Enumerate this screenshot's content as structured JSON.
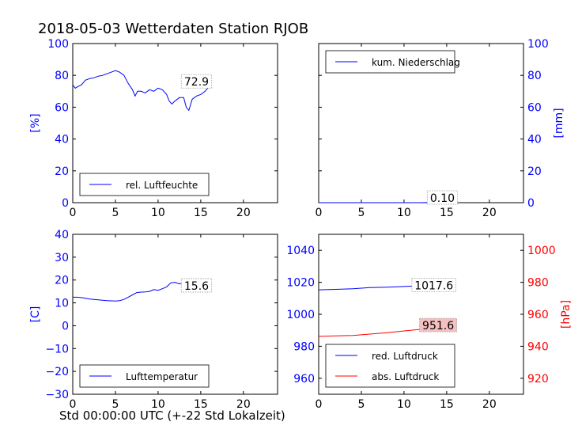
{
  "figure": {
    "title": "2018-05-03 Wetterdaten Station RJOB",
    "xlabel": "Std 00:00:00 UTC (+-22 Std Lokalzeit)"
  },
  "colors": {
    "blue": "#0000ff",
    "red": "#ff0000",
    "black": "#000000"
  },
  "chart_data": [
    {
      "type": "line",
      "panel": "top-left",
      "xlim": [
        0,
        24
      ],
      "xticks": [
        0,
        5,
        10,
        15,
        20
      ],
      "ylim": [
        0,
        100
      ],
      "yticks": [
        0,
        20,
        40,
        60,
        80,
        100
      ],
      "ylabel": "[%]",
      "yaxis_side": "left",
      "axis_color": "#0000ff",
      "legend_position": "lower-left",
      "annotation": {
        "text": "72.9",
        "x": 14.5,
        "y": 76
      },
      "series": [
        {
          "name": "rel. Luftfeuchte",
          "color": "#0000ff",
          "x": [
            0,
            0.3,
            0.6,
            1,
            1.5,
            2,
            2.5,
            3,
            3.5,
            4,
            4.5,
            5,
            5.5,
            6,
            6.5,
            7,
            7.3,
            7.6,
            8,
            8.5,
            9,
            9.5,
            10,
            10.5,
            11,
            11.3,
            11.6,
            12,
            12.5,
            13,
            13.3,
            13.6,
            14,
            14.5,
            15,
            15.5,
            16
          ],
          "values": [
            74,
            72,
            73,
            74,
            77,
            78,
            78.5,
            79.5,
            80,
            81,
            82,
            83,
            82,
            80,
            75,
            71,
            67,
            70,
            70,
            69,
            71,
            70,
            72,
            71,
            68,
            64,
            62,
            64,
            66,
            66,
            60,
            58,
            65,
            67,
            68,
            70,
            73
          ]
        }
      ]
    },
    {
      "type": "line",
      "panel": "top-right",
      "xlim": [
        0,
        24
      ],
      "xticks": [
        0,
        5,
        10,
        15,
        20
      ],
      "ylim": [
        0,
        100
      ],
      "yticks": [
        0,
        20,
        40,
        60,
        80,
        100
      ],
      "ylabel": "[mm]",
      "yaxis_side": "right",
      "axis_color": "#0000ff",
      "legend_position": "upper-left",
      "annotation": {
        "text": "0.10",
        "x": 14.5,
        "y": 3
      },
      "series": [
        {
          "name": "kum. Niederschlag",
          "color": "#0000ff",
          "x": [
            0,
            4,
            8,
            12,
            13,
            16
          ],
          "values": [
            0,
            0,
            0,
            0,
            0.1,
            0.1
          ]
        }
      ]
    },
    {
      "type": "line",
      "panel": "bottom-left",
      "xlim": [
        0,
        24
      ],
      "xticks": [
        0,
        5,
        10,
        15,
        20
      ],
      "ylim": [
        -30,
        40
      ],
      "yticks": [
        -30,
        -20,
        -10,
        0,
        10,
        20,
        30,
        40
      ],
      "ylabel": "[C]",
      "yaxis_side": "left",
      "axis_color": "#0000ff",
      "legend_position": "lower-left",
      "annotation": {
        "text": "15.6",
        "x": 14.5,
        "y": 17.5
      },
      "series": [
        {
          "name": "Lufttemperatur",
          "color": "#0000ff",
          "x": [
            0,
            0.5,
            1,
            1.5,
            2,
            3,
            4,
            5,
            5.5,
            6,
            6.5,
            7,
            7.5,
            8,
            8.5,
            9,
            9.5,
            10,
            10.5,
            11,
            11.5,
            12,
            12.5,
            13,
            13.5,
            14,
            14.5,
            15,
            15.5,
            16
          ],
          "values": [
            12.5,
            12.5,
            12.3,
            12,
            11.7,
            11.3,
            11,
            10.8,
            11,
            11.5,
            12.5,
            13.5,
            14.5,
            14.7,
            14.8,
            15,
            15.8,
            15.5,
            16.2,
            17,
            18.8,
            19,
            18.3,
            18.8,
            17.5,
            18.5,
            17.2,
            17.3,
            16.5,
            15.6
          ]
        }
      ]
    },
    {
      "type": "line",
      "panel": "bottom-right",
      "xlim": [
        0,
        24
      ],
      "xticks": [
        0,
        5,
        10,
        15,
        20
      ],
      "ylim": [
        950,
        1050
      ],
      "yticks": [
        960,
        980,
        1000,
        1020,
        1040
      ],
      "ylabel": "",
      "yaxis_side": "left",
      "axis_color": "#0000ff",
      "ylim_right": [
        910,
        1010
      ],
      "yticks_right": [
        920,
        940,
        960,
        980,
        1000
      ],
      "ylabel_right": "[hPa]",
      "axis_color_right": "#ff0000",
      "legend_position": "lower-left",
      "annotations": [
        {
          "text": "1017.6",
          "x": 13.5,
          "y": 1018,
          "axis": "left",
          "boxcolor": "#ffffff"
        },
        {
          "text": "951.6",
          "x": 14.0,
          "y": 953,
          "axis": "right",
          "boxcolor": "#f4c0c0"
        }
      ],
      "series": [
        {
          "name": "red. Luftdruck",
          "color": "#0000ff",
          "axis": "left",
          "x": [
            0,
            2,
            4,
            6,
            8,
            10,
            11,
            12,
            14,
            16
          ],
          "values": [
            1015.3,
            1015.6,
            1016,
            1016.7,
            1017,
            1017.4,
            1017.6,
            1017.6,
            1017.6,
            1017.6
          ]
        },
        {
          "name": "abs. Luftdruck",
          "color": "#ff0000",
          "axis": "right",
          "x": [
            0,
            2,
            4,
            6,
            8,
            10,
            12,
            14,
            16
          ],
          "values": [
            946.2,
            946.5,
            946.8,
            947.6,
            948.5,
            949.6,
            950.6,
            951.2,
            951.6
          ]
        }
      ]
    }
  ]
}
